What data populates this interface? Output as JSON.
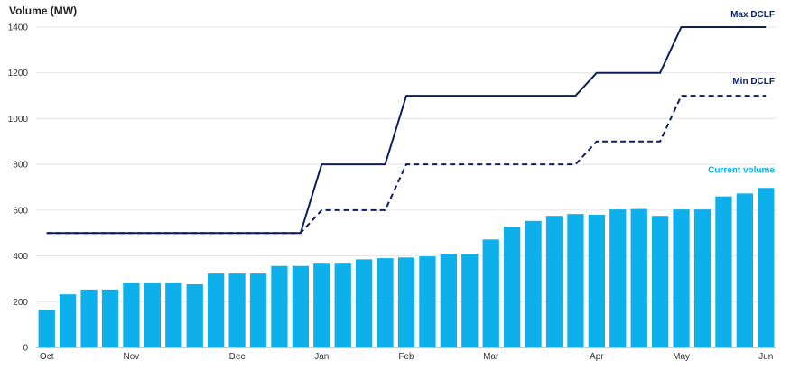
{
  "chart_data": {
    "type": "bar",
    "ylabel": "Volume  (MW)",
    "ylim": [
      0,
      1400
    ],
    "yticks": [
      0,
      200,
      400,
      600,
      800,
      1000,
      1200,
      1400
    ],
    "grid": true,
    "month_labels": [
      {
        "label": "Oct",
        "index": 0
      },
      {
        "label": "Nov",
        "index": 4
      },
      {
        "label": "Dec",
        "index": 9
      },
      {
        "label": "Jan",
        "index": 13
      },
      {
        "label": "Feb",
        "index": 17
      },
      {
        "label": "Mar",
        "index": 21
      },
      {
        "label": "Apr",
        "index": 26
      },
      {
        "label": "May",
        "index": 30
      },
      {
        "label": "Jun",
        "index": 34
      }
    ],
    "series": [
      {
        "name": "Current volume",
        "kind": "bar",
        "color": "#0db0ea",
        "values": [
          165,
          232,
          253,
          253,
          280,
          280,
          280,
          276,
          323,
          323,
          323,
          356,
          356,
          370,
          370,
          385,
          390,
          393,
          398,
          410,
          410,
          472,
          528,
          553,
          575,
          583,
          580,
          603,
          605,
          575,
          603,
          603,
          660,
          673,
          697
        ]
      },
      {
        "name": "Max DCLF",
        "kind": "line",
        "style": "solid",
        "color": "#0c1f5c",
        "points": [
          [
            0,
            500
          ],
          [
            12,
            500
          ],
          [
            13,
            800
          ],
          [
            16,
            800
          ],
          [
            17,
            1100
          ],
          [
            25,
            1100
          ],
          [
            26,
            1200
          ],
          [
            29,
            1200
          ],
          [
            30,
            1400
          ],
          [
            34,
            1400
          ]
        ]
      },
      {
        "name": "Min DCLF",
        "kind": "line",
        "style": "dashed",
        "color": "#0c1f5c",
        "points": [
          [
            0,
            500
          ],
          [
            12,
            500
          ],
          [
            13,
            600
          ],
          [
            16,
            600
          ],
          [
            17,
            800
          ],
          [
            25,
            800
          ],
          [
            26,
            900
          ],
          [
            29,
            900
          ],
          [
            30,
            1100
          ],
          [
            34,
            1100
          ]
        ]
      }
    ]
  }
}
